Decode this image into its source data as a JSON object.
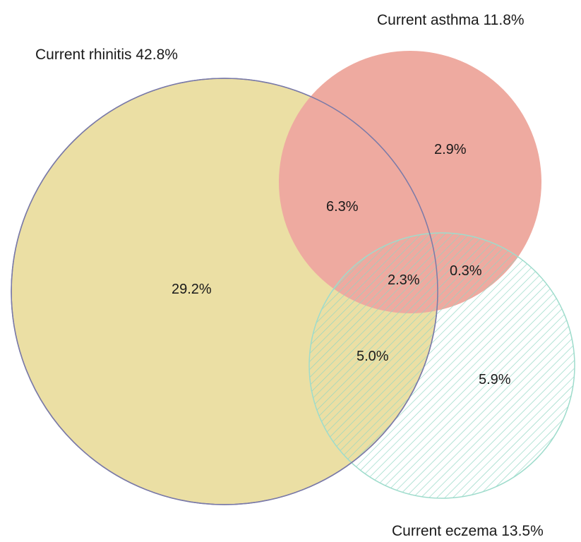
{
  "sets": {
    "rhinitis": {
      "label": "Current rhinitis 42.8%",
      "color": "#ebdfa4",
      "stroke": "#7a7aa8"
    },
    "asthma": {
      "label": "Current asthma 11.8%",
      "color": "#eeaaa0"
    },
    "eczema": {
      "label": "Current eczema 13.5%",
      "color": "#7fd3bf"
    }
  },
  "regions": {
    "rhinitis_only": "29.2%",
    "asthma_only": "2.9%",
    "eczema_only": "5.9%",
    "rhinitis_asthma": "6.3%",
    "rhinitis_eczema": "5.0%",
    "asthma_eczema": "0.3%",
    "all_three": "2.3%"
  }
}
